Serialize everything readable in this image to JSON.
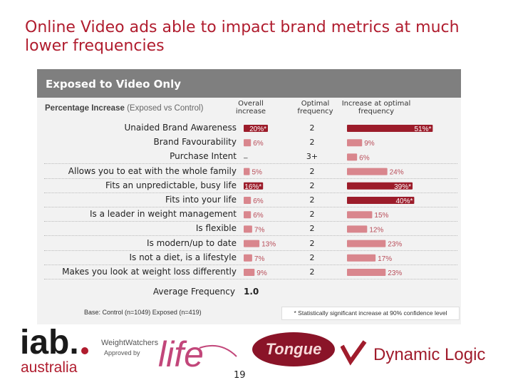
{
  "title": "Online Video ads able to impact brand metrics at much lower frequencies",
  "panel_title": "Exposed to Video Only",
  "subtitle_bold": "Percentage Increase",
  "subtitle_rest": " (Exposed vs Control)",
  "col_overall": "Overall increase",
  "col_optimal_freq": "Optimal frequency",
  "col_increase_optimal": "Increase at optimal frequency",
  "avg_label": "Average Frequency",
  "avg_value": "1.0",
  "base_note": "Base: Control (n=1049) Exposed (n=419)",
  "sig_note": "* Statistically significant increase at 90% confidence level",
  "page_number": "19",
  "logos": {
    "iab_top": "iab.",
    "iab_bottom": "australia",
    "ww_text": "WeightWatchers",
    "ww_approved": "Approved by",
    "ww_life": "life",
    "tongue": "Tongue",
    "dynamic_logic": "Dynamic Logic"
  },
  "colors": {
    "title": "#b01c2e",
    "bar": "#9c1c2a",
    "bar_light": "#d9868d",
    "header": "#7f7f7f"
  },
  "chart_data": {
    "type": "bar",
    "categories": [
      "Unaided Brand Awareness",
      "Brand Favourability",
      "Purchase Intent",
      "Allows you to eat with the whole family",
      "Fits an unpredictable, busy life",
      "Fits into your life",
      "Is a leader in weight management",
      "Is flexible",
      "Is modern/up to date",
      "Is not a diet, is a lifestyle",
      "Makes you look at weight loss differently"
    ],
    "series": [
      {
        "name": "Overall increase",
        "values": [
          20,
          6,
          null,
          5,
          16,
          6,
          6,
          7,
          13,
          7,
          9
        ],
        "labels": [
          "20%*",
          "6%",
          "–",
          "5%",
          "16%*",
          "6%",
          "6%",
          "7%",
          "13%",
          "7%",
          "9%"
        ],
        "significant": [
          true,
          false,
          false,
          false,
          true,
          false,
          false,
          false,
          false,
          false,
          false
        ]
      },
      {
        "name": "Optimal frequency",
        "labels": [
          "2",
          "2",
          "3+",
          "2",
          "2",
          "2",
          "2",
          "2",
          "2",
          "2",
          "2"
        ]
      },
      {
        "name": "Increase at optimal frequency",
        "values": [
          51,
          9,
          6,
          24,
          39,
          40,
          15,
          12,
          23,
          17,
          23
        ],
        "labels": [
          "51%*",
          "9%",
          "6%",
          "24%",
          "39%*",
          "40%*",
          "15%",
          "12%",
          "23%",
          "17%",
          "23%"
        ],
        "significant": [
          true,
          false,
          false,
          false,
          true,
          true,
          false,
          false,
          false,
          false,
          false
        ]
      }
    ]
  }
}
